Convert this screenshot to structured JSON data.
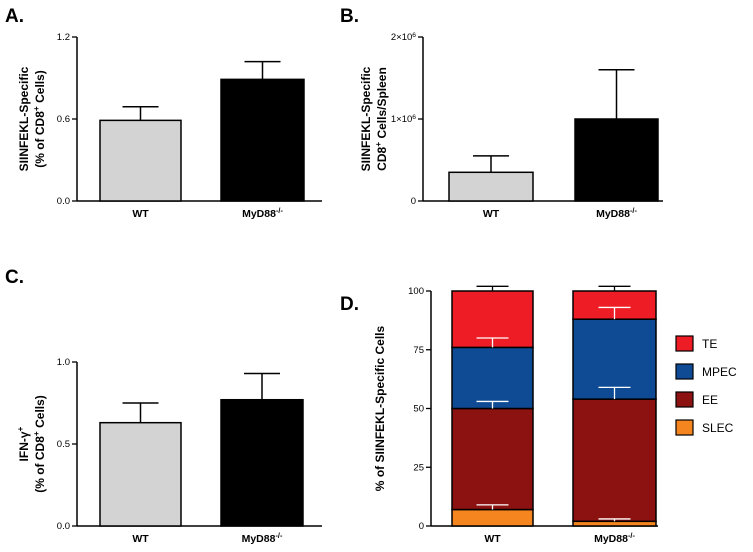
{
  "colors": {
    "wt": "#d3d3d3",
    "myd88": "#000000",
    "TE": "#ee1c25",
    "MPEC": "#0f4a94",
    "EE": "#8c1212",
    "SLEC": "#f5851f"
  },
  "chart_data": [
    {
      "panel": "A.",
      "type": "bar",
      "categories": [
        "WT",
        "MyD88-/-"
      ],
      "category_sup": [
        "",
        "-/-"
      ],
      "values": [
        0.59,
        0.89
      ],
      "errors": [
        0.1,
        0.13
      ],
      "ylabel_line1": "SIINFEKL-Specific",
      "ylabel_line2": "(% of CD8+ Cells)",
      "ylim": [
        0,
        1.2
      ],
      "yticks": [
        "0.0",
        "0.6",
        "1.2"
      ],
      "ytick_values": [
        0,
        0.6,
        1.2
      ]
    },
    {
      "panel": "B.",
      "type": "bar",
      "categories": [
        "WT",
        "MyD88-/-"
      ],
      "values": [
        350000,
        1000000
      ],
      "errors": [
        200000,
        600000
      ],
      "ylabel_line1": "SIINFEKL-Specific",
      "ylabel_line2": "CD8+ Cells/Spleen",
      "ylim": [
        0,
        2000000
      ],
      "yticks": [
        "0",
        "1×10⁶",
        "2×10⁶"
      ],
      "ytick_values": [
        0,
        1000000,
        2000000
      ]
    },
    {
      "panel": "C.",
      "type": "bar",
      "categories": [
        "WT",
        "MyD88-/-"
      ],
      "values": [
        0.63,
        0.77
      ],
      "errors": [
        0.12,
        0.16
      ],
      "ylabel_line1": "IFN-γ+",
      "ylabel_line2": "(% of CD8+ Cells)",
      "ylim": [
        0,
        1.0
      ],
      "yticks": [
        "0.0",
        "0.5",
        "1.0"
      ],
      "ytick_values": [
        0,
        0.5,
        1.0
      ]
    },
    {
      "panel": "D.",
      "type": "bar",
      "stacked": true,
      "categories": [
        "WT",
        "MyD88-/-"
      ],
      "series": [
        {
          "name": "SLEC",
          "values": [
            7,
            2
          ],
          "errors": [
            2,
            1
          ]
        },
        {
          "name": "EE",
          "values": [
            43,
            52
          ],
          "errors": [
            3,
            5
          ]
        },
        {
          "name": "MPEC",
          "values": [
            26,
            34
          ],
          "errors": [
            4,
            5
          ]
        },
        {
          "name": "TE",
          "values": [
            24,
            12
          ],
          "errors": [
            2,
            2
          ]
        }
      ],
      "legend_order": [
        "TE",
        "MPEC",
        "EE",
        "SLEC"
      ],
      "legend_position": "right",
      "ylabel_line1": "% of SIINFEKL-Specific Cells",
      "ylim": [
        0,
        100
      ],
      "yticks": [
        "0",
        "25",
        "50",
        "75",
        "100"
      ],
      "ytick_values": [
        0,
        25,
        50,
        75,
        100
      ]
    }
  ]
}
